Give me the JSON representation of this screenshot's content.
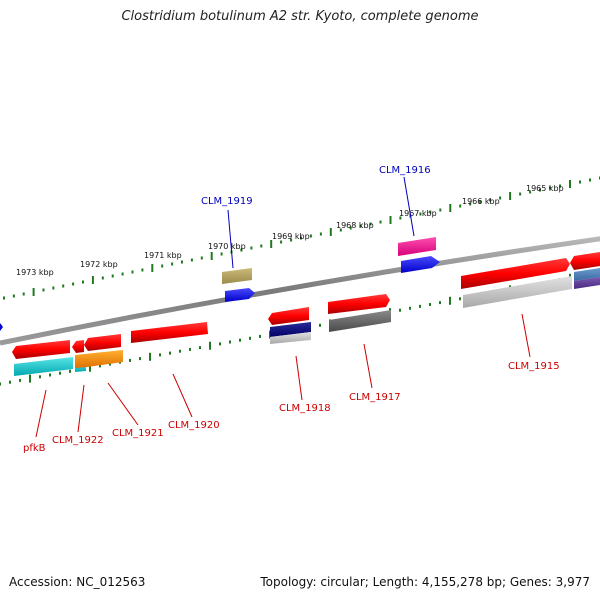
{
  "title": "Clostridium botulinum A2 str. Kyoto, complete genome",
  "footer": {
    "accession": "Accession: NC_012563",
    "topology": "Topology: circular; Length: 4,155,278 bp; Genes: 3,977"
  },
  "colors": {
    "backbone": "#8a8a8a",
    "tick": "#1f7a1f",
    "label_red": "#cc0000",
    "label_blue": "#0000bb"
  },
  "kbp_labels": [
    "1973 kbp",
    "1972 kbp",
    "1971 kbp",
    "1970 kbp",
    "1969 kbp",
    "1968 kbp",
    "1967 kbp",
    "1966 kbp",
    "1965 kbp"
  ],
  "gene_labels": {
    "top": [
      "CLM_1919",
      "CLM_1916"
    ],
    "bottom": [
      "pfkB",
      "CLM_1922",
      "CLM_1921",
      "CLM_1920",
      "CLM_1918",
      "CLM_1917",
      "CLM_1915"
    ]
  },
  "features": [
    {
      "id": "pfkB",
      "strand": "reverse",
      "color": "#d4000e"
    },
    {
      "id": "CLM_1922",
      "strand": "reverse",
      "color": "#d4000e"
    },
    {
      "id": "CLM_1921",
      "strand": "reverse",
      "color": "#d4000e"
    },
    {
      "id": "CLM_1920",
      "strand": "forward",
      "color": "#d4000e"
    },
    {
      "id": "CLM_1919",
      "strand": "forward",
      "color": "#d4000e"
    },
    {
      "id": "CLM_1918",
      "strand": "reverse",
      "color": "#d4000e"
    },
    {
      "id": "CLM_1917",
      "strand": "forward",
      "color": "#d4000e"
    },
    {
      "id": "CLM_1916",
      "strand": "forward",
      "color": "#d4000e"
    },
    {
      "id": "CLM_1915",
      "strand": "forward",
      "color": "#d4000e"
    }
  ]
}
